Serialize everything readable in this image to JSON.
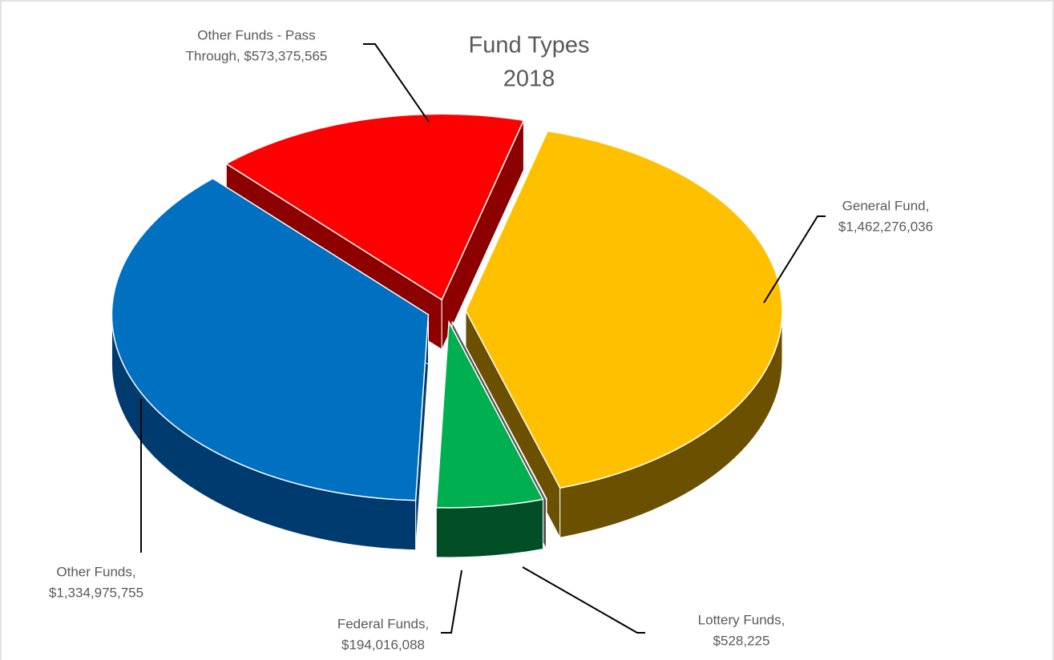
{
  "chart_data": {
    "type": "pie3d",
    "title": "Fund Types",
    "subtitle": "2018",
    "categories": [
      "General Fund",
      "Lottery Funds",
      "Federal Funds",
      "Other Funds",
      "Other Funds - Pass Through"
    ],
    "values": [
      1462276036,
      528225,
      194016088,
      1334975755,
      573375565
    ],
    "data_labels": [
      [
        "General Fund,",
        "$1,462,276,036"
      ],
      [
        "Lottery Funds,",
        "$528,225"
      ],
      [
        "Federal Funds,",
        "$194,016,088"
      ],
      [
        "Other Funds,",
        "$1,334,975,755"
      ],
      [
        "Other Funds - Pass",
        "Through, $573,375,565"
      ]
    ],
    "colors": [
      "#FFC000",
      "#A5A5A5",
      "#00B050",
      "#0070C0",
      "#FF0000"
    ],
    "wall_colors": [
      "#6B5000",
      "#555555",
      "#004D26",
      "#003B70",
      "#8C0000"
    ]
  }
}
